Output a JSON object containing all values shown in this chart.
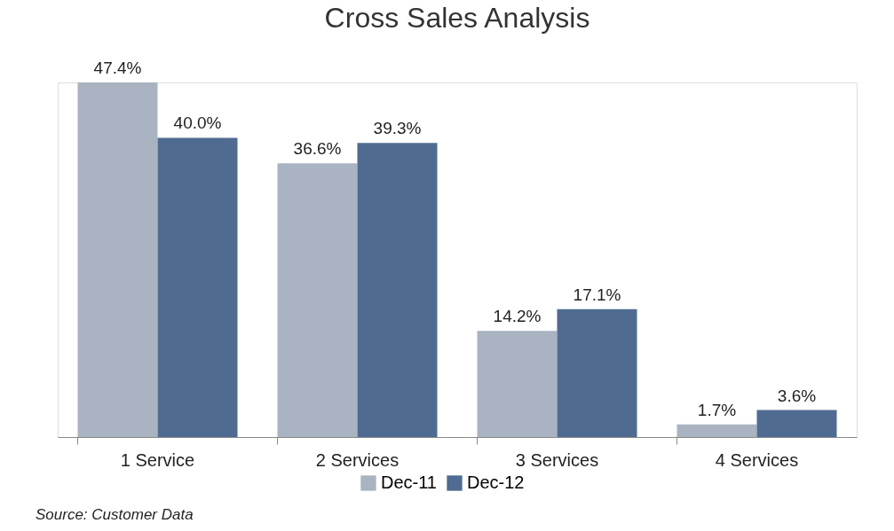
{
  "chart_data": {
    "type": "bar",
    "title": "Cross Sales Analysis",
    "categories": [
      "1 Service",
      "2 Services",
      "3 Services",
      "4 Services"
    ],
    "series": [
      {
        "name": "Dec-11",
        "color": "#a9b3c1",
        "values": [
          47.4,
          36.6,
          14.2,
          1.7
        ],
        "value_labels": [
          "47.4%",
          "36.6%",
          "14.2%",
          "1.7%"
        ]
      },
      {
        "name": "Dec-12",
        "color": "#4f6b91",
        "values": [
          40.0,
          39.3,
          17.1,
          3.6
        ],
        "value_labels": [
          "40.0%",
          "39.3%",
          "17.1%",
          "3.6%"
        ]
      }
    ],
    "legend": "bottom",
    "grid": false,
    "annotations": [
      "Source: Customer Data"
    ]
  }
}
